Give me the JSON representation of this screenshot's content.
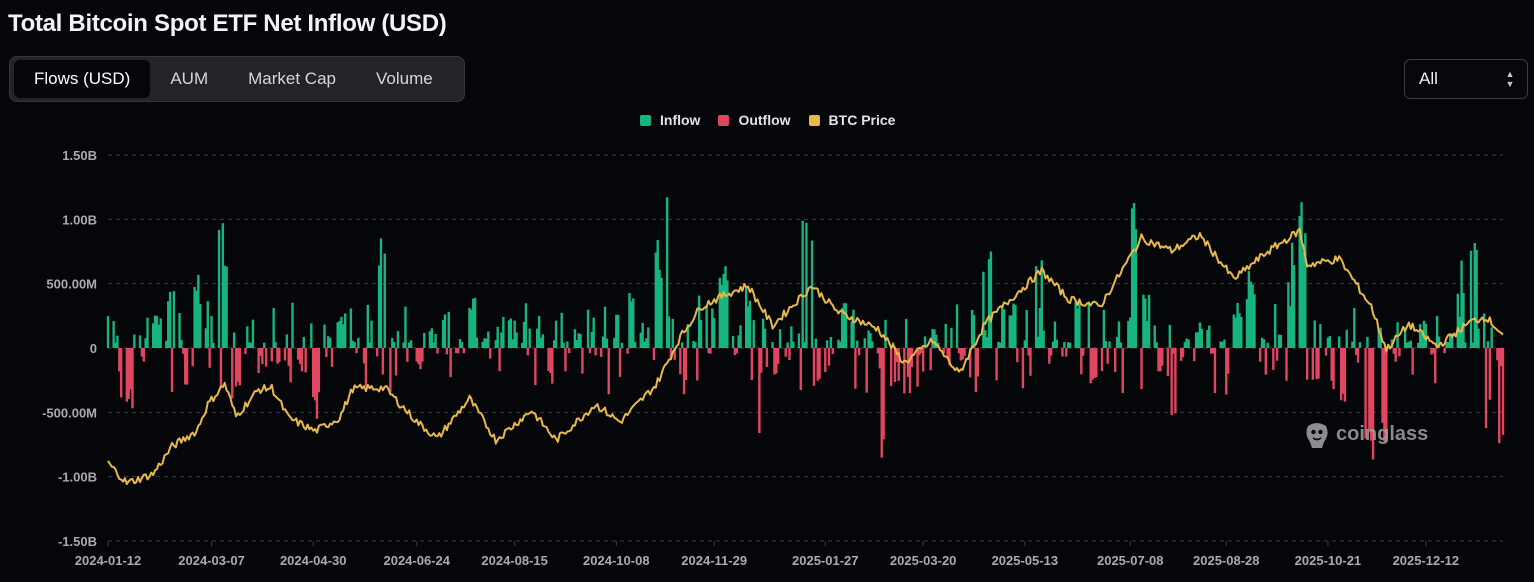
{
  "page": {
    "title": "Total Bitcoin Spot ETF Net Inflow (USD)"
  },
  "tabs": [
    {
      "label": "Flows (USD)",
      "active": true
    },
    {
      "label": "AUM",
      "active": false
    },
    {
      "label": "Market Cap",
      "active": false
    },
    {
      "label": "Volume",
      "active": false
    }
  ],
  "range_select": {
    "value": "All"
  },
  "watermark": {
    "text": "coinglass"
  },
  "colors": {
    "inflow": "#17b47f",
    "outflow": "#e0465f",
    "btc_price": "#e8b84a",
    "grid": "#3a3d44",
    "axis_text": "#a9abb0"
  },
  "chart_data": {
    "type": "bar",
    "title": "Total Bitcoin Spot ETF Net Inflow (USD)",
    "legend": {
      "position": "top-center",
      "entries": [
        {
          "name": "Inflow",
          "color": "#17b47f"
        },
        {
          "name": "Outflow",
          "color": "#e0465f"
        },
        {
          "name": "BTC Price",
          "color": "#e8b84a"
        }
      ]
    },
    "grid": true,
    "y_axis": {
      "range": [
        -1500000000,
        1500000000
      ],
      "ticks": [
        1500000000,
        1000000000,
        500000000,
        0,
        -500000000,
        -1000000000,
        -1500000000
      ],
      "tick_labels": [
        "1.50B",
        "1.00B",
        "500.00M",
        "0",
        "-500.00M",
        "-1.00B",
        "-1.50B"
      ]
    },
    "x_axis": {
      "range": [
        "2024-01-12",
        "2026-01-22"
      ],
      "tick_labels": [
        "2024-01-12",
        "2024-03-07",
        "2024-04-30",
        "2024-06-24",
        "2024-08-15",
        "2024-10-08",
        "2024-11-29",
        "2025-01-27",
        "2025-03-20",
        "2025-05-13",
        "2025-07-08",
        "2025-08-28",
        "2025-10-21",
        "2025-12-12"
      ]
    },
    "flow_anchors": {
      "note_units": "USD net flow per trading day",
      "points": [
        [
          "2024-01-12",
          300000000
        ],
        [
          "2024-01-22",
          -480000000
        ],
        [
          "2024-02-05",
          260000000
        ],
        [
          "2024-02-15",
          570000000
        ],
        [
          "2024-02-28",
          650000000
        ],
        [
          "2024-03-12",
          1040000000
        ],
        [
          "2024-03-20",
          -420000000
        ],
        [
          "2024-04-02",
          -200000000
        ],
        [
          "2024-04-15",
          120000000
        ],
        [
          "2024-04-26",
          -190000000
        ],
        [
          "2024-05-01",
          -560000000
        ],
        [
          "2024-05-16",
          300000000
        ],
        [
          "2024-06-05",
          880000000
        ],
        [
          "2024-06-14",
          -230000000
        ],
        [
          "2024-06-24",
          -170000000
        ],
        [
          "2024-07-10",
          300000000
        ],
        [
          "2024-07-22",
          480000000
        ],
        [
          "2024-08-05",
          -230000000
        ],
        [
          "2024-08-26",
          200000000
        ],
        [
          "2024-09-03",
          -280000000
        ],
        [
          "2024-09-20",
          180000000
        ],
        [
          "2024-10-14",
          550000000
        ],
        [
          "2024-10-29",
          870000000
        ],
        [
          "2024-11-07",
          1370000000
        ],
        [
          "2024-11-15",
          -400000000
        ],
        [
          "2024-11-22",
          500000000
        ],
        [
          "2024-12-05",
          760000000
        ],
        [
          "2024-12-17",
          480000000
        ],
        [
          "2024-12-20",
          -680000000
        ],
        [
          "2025-01-17",
          1060000000
        ],
        [
          "2025-01-24",
          -300000000
        ],
        [
          "2025-02-07",
          350000000
        ],
        [
          "2025-02-25",
          -1010000000
        ],
        [
          "2025-03-10",
          -370000000
        ],
        [
          "2025-03-24",
          150000000
        ],
        [
          "2025-04-10",
          -100000000
        ],
        [
          "2025-04-22",
          900000000
        ],
        [
          "2025-05-05",
          420000000
        ],
        [
          "2025-05-22",
          700000000
        ],
        [
          "2025-06-10",
          380000000
        ],
        [
          "2025-06-20",
          -280000000
        ],
        [
          "2025-07-10",
          1180000000
        ],
        [
          "2025-07-18",
          450000000
        ],
        [
          "2025-08-01",
          -810000000
        ],
        [
          "2025-08-15",
          200000000
        ],
        [
          "2025-09-10",
          620000000
        ],
        [
          "2025-10-02",
          840000000
        ],
        [
          "2025-10-06",
          1190000000
        ],
        [
          "2025-10-13",
          -350000000
        ],
        [
          "2025-10-27",
          -480000000
        ],
        [
          "2025-11-13",
          -870000000
        ],
        [
          "2025-11-20",
          -900000000
        ],
        [
          "2025-12-10",
          220000000
        ],
        [
          "2025-12-31",
          700000000
        ],
        [
          "2026-01-05",
          830000000
        ],
        [
          "2026-01-14",
          -640000000
        ],
        [
          "2026-01-20",
          -830000000
        ]
      ]
    },
    "series": [
      {
        "name": "BTC Price",
        "color": "#e8b84a",
        "axis": "secondary",
        "points": [
          [
            "2024-01-12",
            46300
          ],
          [
            "2024-01-22",
            39500
          ],
          [
            "2024-02-05",
            42600
          ],
          [
            "2024-02-15",
            51800
          ],
          [
            "2024-02-28",
            57000
          ],
          [
            "2024-03-05",
            66000
          ],
          [
            "2024-03-14",
            73000
          ],
          [
            "2024-03-20",
            62000
          ],
          [
            "2024-04-01",
            71000
          ],
          [
            "2024-04-08",
            71600
          ],
          [
            "2024-04-17",
            61400
          ],
          [
            "2024-05-01",
            57000
          ],
          [
            "2024-05-14",
            61500
          ],
          [
            "2024-05-21",
            71300
          ],
          [
            "2024-06-07",
            71600
          ],
          [
            "2024-06-24",
            60200
          ],
          [
            "2024-07-05",
            54500
          ],
          [
            "2024-07-22",
            68000
          ],
          [
            "2024-08-05",
            54000
          ],
          [
            "2024-08-24",
            64000
          ],
          [
            "2024-09-06",
            53900
          ],
          [
            "2024-09-27",
            66000
          ],
          [
            "2024-10-10",
            60100
          ],
          [
            "2024-10-29",
            72500
          ],
          [
            "2024-11-11",
            88700
          ],
          [
            "2024-11-22",
            99000
          ],
          [
            "2024-12-05",
            103000
          ],
          [
            "2024-12-17",
            106000
          ],
          [
            "2024-12-30",
            92500
          ],
          [
            "2025-01-20",
            106000
          ],
          [
            "2025-02-03",
            97000
          ],
          [
            "2025-02-24",
            91500
          ],
          [
            "2025-03-10",
            80000
          ],
          [
            "2025-03-25",
            87500
          ],
          [
            "2025-04-08",
            76300
          ],
          [
            "2025-04-22",
            93300
          ],
          [
            "2025-05-08",
            103000
          ],
          [
            "2025-05-22",
            111000
          ],
          [
            "2025-06-05",
            101500
          ],
          [
            "2025-06-22",
            99000
          ],
          [
            "2025-07-14",
            122000
          ],
          [
            "2025-07-30",
            117800
          ],
          [
            "2025-08-14",
            123000
          ],
          [
            "2025-09-01",
            108200
          ],
          [
            "2025-09-18",
            117000
          ],
          [
            "2025-10-06",
            124500
          ],
          [
            "2025-10-10",
            113000
          ],
          [
            "2025-10-27",
            115000
          ],
          [
            "2025-11-13",
            99000
          ],
          [
            "2025-11-21",
            84500
          ],
          [
            "2025-12-03",
            93000
          ],
          [
            "2025-12-18",
            85500
          ],
          [
            "2026-01-05",
            93900
          ],
          [
            "2026-01-13",
            95500
          ],
          [
            "2026-01-22",
            89500
          ]
        ]
      }
    ]
  }
}
